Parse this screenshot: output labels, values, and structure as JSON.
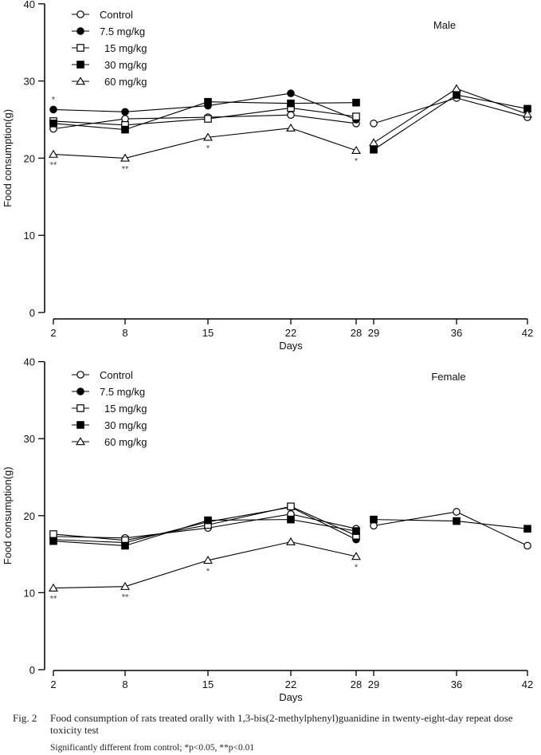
{
  "chart_data": [
    {
      "type": "line",
      "panel": "Male",
      "xlabel": "Days",
      "ylabel": "Food consumption(g)",
      "ylim": [
        0,
        40
      ],
      "yticks": [
        0,
        10,
        20,
        30,
        40
      ],
      "xticks": [
        2,
        8,
        15,
        22,
        28,
        29,
        36,
        42
      ],
      "legend_position": "top-left",
      "series": [
        {
          "name": "Control",
          "marker": "open-circle",
          "dosing": {
            "x": [
              2,
              8,
              15,
              22,
              28
            ],
            "y": [
              23.8,
              25.1,
              25.3,
              25.6,
              24.5
            ]
          },
          "recovery": {
            "x": [
              29,
              36,
              42
            ],
            "y": [
              24.5,
              27.8,
              25.3
            ]
          }
        },
        {
          "name": "7.5 mg/kg",
          "marker": "filled-circle",
          "dosing": {
            "x": [
              2,
              8,
              15,
              22,
              28
            ],
            "y": [
              26.3,
              26.0,
              26.8,
              28.4,
              25.0
            ]
          },
          "recovery": null
        },
        {
          "name": "15 mg/kg",
          "marker": "open-square",
          "dosing": {
            "x": [
              2,
              8,
              15,
              22,
              28
            ],
            "y": [
              24.8,
              24.3,
              25.1,
              26.5,
              25.4
            ]
          },
          "recovery": null
        },
        {
          "name": "30 mg/kg",
          "marker": "filled-square",
          "dosing": {
            "x": [
              2,
              8,
              15,
              22,
              28
            ],
            "y": [
              24.5,
              23.7,
              27.3,
              27.1,
              27.2
            ]
          },
          "recovery": {
            "x": [
              29,
              36,
              42
            ],
            "y": [
              21.1,
              28.2,
              26.4
            ]
          }
        },
        {
          "name": "60 mg/kg",
          "marker": "open-triangle",
          "dosing": {
            "x": [
              2,
              8,
              15,
              22,
              28
            ],
            "y": [
              20.5,
              20.0,
              22.7,
              23.9,
              21.0
            ]
          },
          "recovery": {
            "x": [
              29,
              36,
              42
            ],
            "y": [
              22.0,
              29.0,
              25.7
            ]
          }
        }
      ],
      "annotations": [
        {
          "x": 2,
          "text": "*",
          "position": "above",
          "y": 26.3
        },
        {
          "x": 2,
          "text": "**",
          "position": "below",
          "y": 20.5
        },
        {
          "x": 8,
          "text": "**",
          "position": "below",
          "y": 20.0
        },
        {
          "x": 15,
          "text": "*",
          "position": "below",
          "y": 22.7
        },
        {
          "x": 28,
          "text": "*",
          "position": "below",
          "y": 21.0
        }
      ]
    },
    {
      "type": "line",
      "panel": "Female",
      "xlabel": "Days",
      "ylabel": "Food consumption(g)",
      "ylim": [
        0,
        40
      ],
      "yticks": [
        0,
        10,
        20,
        30,
        40
      ],
      "xticks": [
        2,
        8,
        15,
        22,
        28,
        29,
        36,
        42
      ],
      "legend_position": "top-left",
      "series": [
        {
          "name": "Control",
          "marker": "open-circle",
          "dosing": {
            "x": [
              2,
              8,
              15,
              22,
              28
            ],
            "y": [
              17.3,
              17.1,
              18.4,
              20.2,
              18.3
            ]
          },
          "recovery": {
            "x": [
              29,
              36,
              42
            ],
            "y": [
              18.7,
              20.5,
              16.1
            ]
          }
        },
        {
          "name": "7.5 mg/kg",
          "marker": "filled-circle",
          "dosing": {
            "x": [
              2,
              8,
              15,
              22,
              28
            ],
            "y": [
              16.9,
              16.5,
              19.2,
              21.1,
              16.9
            ]
          },
          "recovery": null
        },
        {
          "name": "15 mg/kg",
          "marker": "open-square",
          "dosing": {
            "x": [
              2,
              8,
              15,
              22,
              28
            ],
            "y": [
              17.6,
              16.8,
              18.8,
              21.2,
              17.4
            ]
          },
          "recovery": null
        },
        {
          "name": "30 mg/kg",
          "marker": "filled-square",
          "dosing": {
            "x": [
              2,
              8,
              15,
              22,
              28
            ],
            "y": [
              16.7,
              16.1,
              19.4,
              19.5,
              18.0
            ]
          },
          "recovery": {
            "x": [
              29,
              36,
              42
            ],
            "y": [
              19.5,
              19.3,
              18.3
            ]
          }
        },
        {
          "name": "60 mg/kg",
          "marker": "open-triangle",
          "dosing": {
            "x": [
              2,
              8,
              15,
              22,
              28
            ],
            "y": [
              10.6,
              10.8,
              14.2,
              16.6,
              14.7
            ]
          },
          "recovery": null
        }
      ],
      "annotations": [
        {
          "x": 2,
          "text": "**",
          "position": "below",
          "y": 10.6
        },
        {
          "x": 8,
          "text": "**",
          "position": "below",
          "y": 10.8
        },
        {
          "x": 15,
          "text": "*",
          "position": "below",
          "y": 14.2
        },
        {
          "x": 28,
          "text": "*",
          "position": "below",
          "y": 14.7
        }
      ]
    }
  ],
  "caption": {
    "fig_number": "Fig. 2",
    "text": "Food consumption of rats treated orally with 1,3-bis(2-methylphenyl)guanidine in twenty-eight-day repeat dose toxicity test",
    "note": "Significantly different from control; *p<0.05, **p<0.01"
  }
}
